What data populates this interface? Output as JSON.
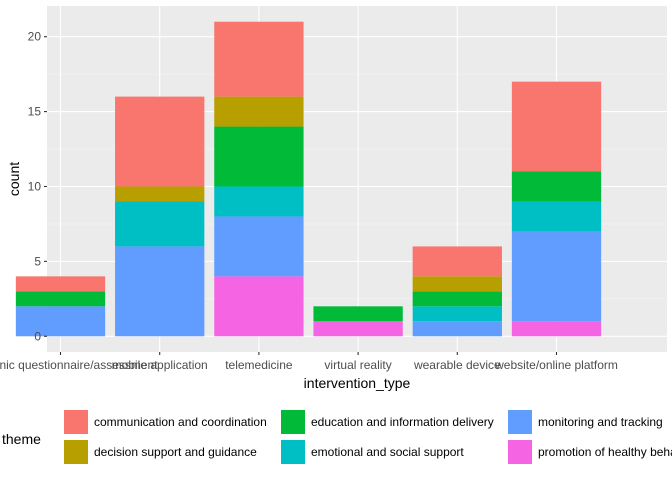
{
  "chart_data": {
    "type": "bar",
    "stacked": true,
    "xlabel": "intervention_type",
    "ylabel": "count",
    "ylim": [
      -1.05,
      22.05
    ],
    "yticks": [
      0,
      5,
      10,
      15,
      20
    ],
    "grid": true,
    "legend_placement": "bottom",
    "legend_title": "theme",
    "categories": [
      "electronic questionnaire/assessment",
      "mobile application",
      "telemedicine",
      "virtual reality",
      "wearable device",
      "website/online platform"
    ],
    "stack_order": [
      "promotion of healthy behaviours",
      "monitoring and tracking",
      "emotional and social support",
      "education and information delivery",
      "decision support and guidance",
      "communication and coordination"
    ],
    "series": [
      {
        "name": "communication and coordination",
        "color": "#F8766D",
        "values": [
          1,
          6,
          5,
          0,
          2,
          6
        ]
      },
      {
        "name": "decision support and guidance",
        "color": "#B79F00",
        "values": [
          0,
          1,
          2,
          0,
          1,
          0
        ]
      },
      {
        "name": "education and information delivery",
        "color": "#00BA38",
        "values": [
          1,
          0,
          4,
          1,
          1,
          2
        ]
      },
      {
        "name": "emotional and social support",
        "color": "#00BFC4",
        "values": [
          0,
          3,
          2,
          0,
          1,
          2
        ]
      },
      {
        "name": "monitoring and tracking",
        "color": "#619CFF",
        "values": [
          2,
          6,
          4,
          0,
          1,
          6
        ]
      },
      {
        "name": "promotion of healthy behaviours",
        "color": "#F564E3",
        "values": [
          0,
          0,
          4,
          1,
          0,
          1
        ]
      }
    ],
    "legend_layout": [
      [
        "communication and coordination",
        "education and information delivery",
        "monitoring and tracking"
      ],
      [
        "decision support and guidance",
        "emotional and social support",
        "promotion of healthy behaviours"
      ]
    ],
    "colors": {
      "panel_background": "#EBEBEB",
      "grid_major": "#FFFFFF",
      "grid_minor": "#F5F5F5"
    }
  }
}
